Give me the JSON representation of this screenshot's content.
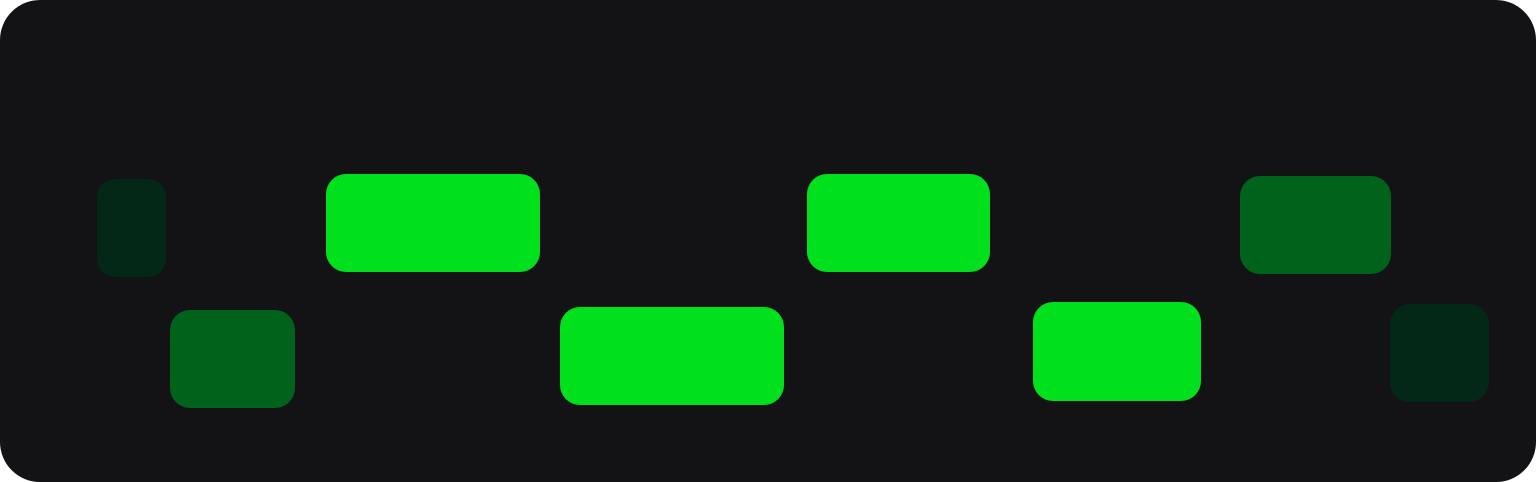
{
  "colors": {
    "background": "#131316",
    "green_bright": "#00e01c",
    "green_medium": "#00621b",
    "green_dark": "#032817"
  },
  "tiles": [
    {
      "name": "tile-1",
      "shade": "green_dark"
    },
    {
      "name": "tile-2",
      "shade": "green_medium"
    },
    {
      "name": "tile-3",
      "shade": "green_bright"
    },
    {
      "name": "tile-4",
      "shade": "green_bright"
    },
    {
      "name": "tile-5",
      "shade": "green_bright"
    },
    {
      "name": "tile-6",
      "shade": "green_bright"
    },
    {
      "name": "tile-7",
      "shade": "green_medium"
    },
    {
      "name": "tile-8",
      "shade": "green_dark"
    }
  ]
}
